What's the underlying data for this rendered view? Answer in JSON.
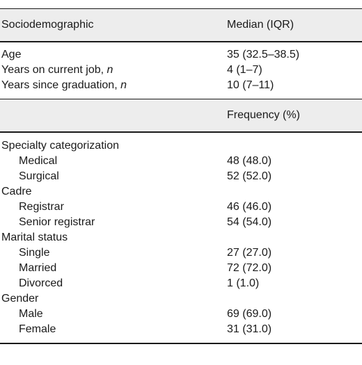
{
  "header1": {
    "col1": "Sociodemographic",
    "col2": "Median (IQR)"
  },
  "median_rows": [
    {
      "label": "Age",
      "value": "35 (32.5–38.5)"
    },
    {
      "label": "Years on current job, ",
      "italic": "n",
      "value": "4 (1–7)"
    },
    {
      "label": "Years since graduation, ",
      "italic": "n",
      "value": "10 (7–11)"
    }
  ],
  "header2": {
    "col1": "",
    "col2": "Frequency (%)"
  },
  "freq_groups": [
    {
      "label": "Specialty categorization",
      "items": [
        {
          "label": "Medical",
          "value": "48 (48.0)"
        },
        {
          "label": "Surgical",
          "value": "52 (52.0)"
        }
      ]
    },
    {
      "label": "Cadre",
      "items": [
        {
          "label": "Registrar",
          "value": "46 (46.0)"
        },
        {
          "label": "Senior registrar",
          "value": "54 (54.0)"
        }
      ]
    },
    {
      "label": "Marital status",
      "items": [
        {
          "label": "Single",
          "value": "27 (27.0)"
        },
        {
          "label": "Married",
          "value": "72 (72.0)"
        },
        {
          "label": "Divorced",
          "value": "1 (1.0)"
        }
      ]
    },
    {
      "label": "Gender",
      "items": [
        {
          "label": "Male",
          "value": "69 (69.0)"
        },
        {
          "label": "Female",
          "value": "31 (31.0)"
        }
      ]
    }
  ]
}
